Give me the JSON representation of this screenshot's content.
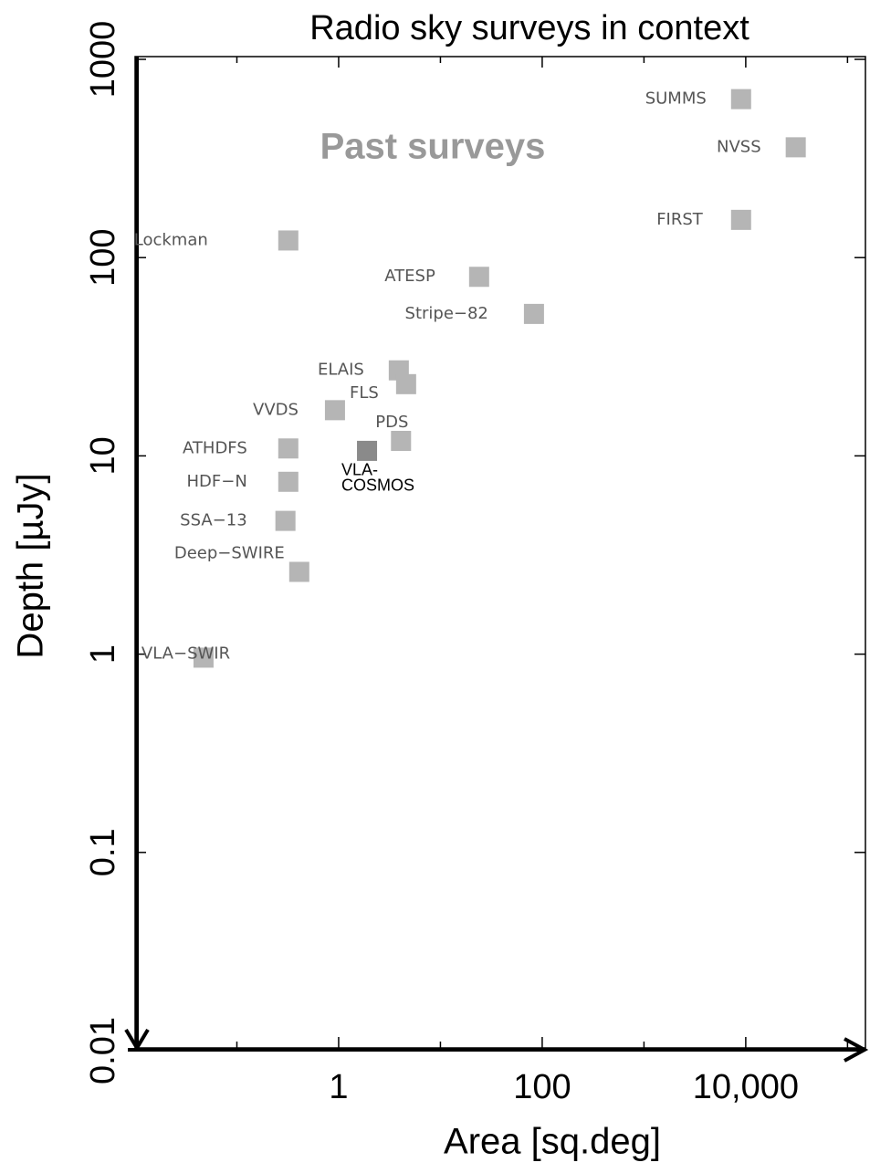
{
  "chart_data": {
    "type": "scatter",
    "title": "Radio sky surveys in context",
    "annotation": "Past surveys",
    "xlabel": "Area [sq.deg]",
    "ylabel": "Depth [µJy]",
    "log_x": true,
    "log_y": true,
    "labels": [
      "SUMMS",
      "NVSS",
      "FIRST",
      "Lockman",
      "ATESP",
      "Stripe−82",
      "ELAIS",
      "FLS",
      "VVDS",
      "PDS",
      "ATHDFS",
      [
        "VLA-",
        "COSMOS"
      ],
      "HDF−N",
      "SSA−13",
      "Deep−SWIRE",
      "VLA−SWIR"
    ],
    "x": [
      9000,
      31000,
      9000,
      0.32,
      24,
      83,
      3.9,
      4.6,
      0.92,
      4.1,
      0.32,
      1.9,
      0.32,
      0.3,
      0.41,
      0.047
    ],
    "y": [
      630,
      360,
      155,
      122,
      80,
      52,
      27,
      23,
      17,
      11.9,
      10.9,
      10.6,
      7.4,
      4.7,
      2.6,
      0.96
    ],
    "colors": [
      "#b5b5b5",
      "#b5b5b5",
      "#b5b5b5",
      "#b5b5b5",
      "#b5b5b5",
      "#b5b5b5",
      "#b5b5b5",
      "#b5b5b5",
      "#b5b5b5",
      "#b5b5b5",
      "#b5b5b5",
      "#8a8a8a",
      "#b5b5b5",
      "#b5b5b5",
      "#b5b5b5",
      "#b5b5b5"
    ],
    "xlim": [
      0.01,
      150000
    ],
    "ylim": [
      0.01,
      1000
    ],
    "xticks": [
      1,
      100,
      {
        "value": 10000,
        "label": "10,000"
      }
    ],
    "xminor_ticks": [
      0.1,
      10,
      1000,
      100000
    ],
    "yticks": [
      0.01,
      0.1,
      1,
      10,
      100,
      1000
    ]
  }
}
